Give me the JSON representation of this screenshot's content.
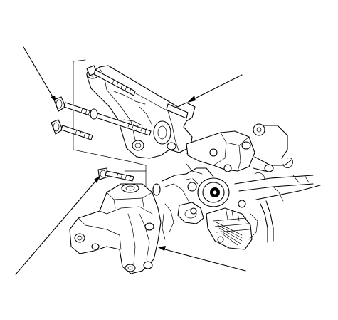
{
  "diagram": {
    "type": "exploded-parts-illustration",
    "labels": [],
    "colors": {
      "ink": "#000000",
      "paper": "#ffffff"
    }
  }
}
